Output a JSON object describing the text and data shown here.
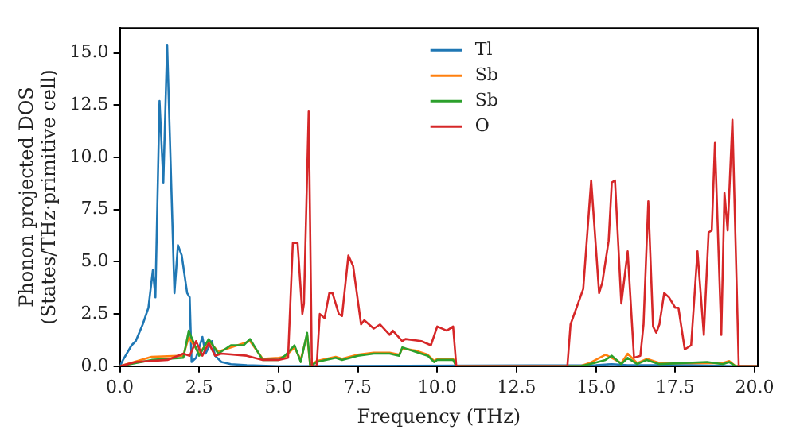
{
  "chart_data": {
    "type": "line",
    "xlabel": "Frequency (THz)",
    "ylabel": "Phonon projected DOS\n(States/THz·primitive cell)",
    "xlim": [
      0,
      20.1
    ],
    "ylim": [
      0,
      16.2
    ],
    "xticks": [
      {
        "value": 0,
        "label": "0.0"
      },
      {
        "value": 2.5,
        "label": "2.5"
      },
      {
        "value": 5,
        "label": "5.0"
      },
      {
        "value": 7.5,
        "label": "7.5"
      },
      {
        "value": 10,
        "label": "10.0"
      },
      {
        "value": 12.5,
        "label": "12.5"
      },
      {
        "value": 15,
        "label": "15.0"
      },
      {
        "value": 17.5,
        "label": "17.5"
      },
      {
        "value": 20,
        "label": "20.0"
      }
    ],
    "yticks": [
      {
        "value": 0,
        "label": "0.0"
      },
      {
        "value": 2.5,
        "label": "2.5"
      },
      {
        "value": 5,
        "label": "5.0"
      },
      {
        "value": 7.5,
        "label": "7.5"
      },
      {
        "value": 10,
        "label": "10.0"
      },
      {
        "value": 12.5,
        "label": "12.5"
      },
      {
        "value": 15,
        "label": "15.0"
      }
    ],
    "legend": "top",
    "grid": false,
    "marker": "none",
    "line_style": "solid",
    "series": [
      {
        "name": "Tl",
        "color": "#1f77b4",
        "x": [
          0,
          0.1,
          0.37,
          0.5,
          0.72,
          0.9,
          1.04,
          1.12,
          1.25,
          1.37,
          1.49,
          1.72,
          1.83,
          1.95,
          2.12,
          2.2,
          2.26,
          2.4,
          2.6,
          2.7,
          2.9,
          3.0,
          3.2,
          3.5,
          4,
          5,
          15,
          15.5,
          16,
          18,
          19.4,
          20.1
        ],
        "values": [
          0,
          0.3,
          1.0,
          1.2,
          2.0,
          2.8,
          4.6,
          3.3,
          12.7,
          8.8,
          15.4,
          3.5,
          5.8,
          5.3,
          3.5,
          3.3,
          0.2,
          0.4,
          1.4,
          0.6,
          1.2,
          0.5,
          0.2,
          0.1,
          0.05,
          0,
          0.05,
          0.1,
          0.05,
          0.05,
          0,
          0
        ]
      },
      {
        "name": "Sb",
        "color": "#ff7f0e",
        "x": [
          0,
          1,
          2,
          2.17,
          2.5,
          2.8,
          3.1,
          3.5,
          3.9,
          4.1,
          4.5,
          5,
          5.2,
          5.5,
          5.7,
          5.9,
          6.0,
          6.2,
          6.8,
          7.0,
          7.5,
          8,
          8.5,
          8.8,
          8.9,
          9.3,
          9.7,
          9.9,
          10,
          10.5,
          10.6,
          14.5,
          14.8,
          15.3,
          15.5,
          15.8,
          16.0,
          16.3,
          16.6,
          17,
          18.5,
          19,
          19.2,
          19.4,
          20.1
        ],
        "values": [
          0,
          0.45,
          0.5,
          1.4,
          0.6,
          1.2,
          0.7,
          0.9,
          1.1,
          1.2,
          0.35,
          0.4,
          0.45,
          0.9,
          0.3,
          1.5,
          0,
          0.25,
          0.45,
          0.35,
          0.55,
          0.65,
          0.65,
          0.55,
          0.85,
          0.75,
          0.55,
          0.25,
          0.35,
          0.35,
          0,
          0,
          0.15,
          0.55,
          0.4,
          0.15,
          0.6,
          0.15,
          0.35,
          0.15,
          0.15,
          0.15,
          0.25,
          0,
          0
        ]
      },
      {
        "name": "Sb",
        "color": "#2ca02c",
        "x": [
          0,
          1,
          2,
          2.17,
          2.5,
          2.8,
          3.1,
          3.5,
          3.9,
          4.1,
          4.5,
          5,
          5.2,
          5.5,
          5.7,
          5.9,
          6.0,
          6.2,
          6.8,
          7.0,
          7.5,
          8,
          8.5,
          8.8,
          8.9,
          9.3,
          9.7,
          9.9,
          10,
          10.5,
          10.6,
          14.5,
          14.8,
          15.3,
          15.5,
          15.8,
          16.0,
          16.3,
          16.6,
          17,
          18.5,
          19,
          19.2,
          19.4,
          20.1
        ],
        "values": [
          0,
          0.3,
          0.4,
          1.7,
          0.5,
          1.3,
          0.6,
          1.0,
          1.0,
          1.3,
          0.3,
          0.3,
          0.5,
          1.0,
          0.2,
          1.6,
          0,
          0.2,
          0.4,
          0.3,
          0.5,
          0.6,
          0.6,
          0.5,
          0.9,
          0.7,
          0.5,
          0.2,
          0.3,
          0.3,
          0,
          0,
          0.1,
          0.3,
          0.5,
          0.1,
          0.4,
          0.1,
          0.3,
          0.1,
          0.2,
          0.1,
          0.2,
          0,
          0
        ]
      },
      {
        "name": "O",
        "color": "#d62728",
        "x": [
          0,
          0.5,
          1.5,
          2,
          2.2,
          2.4,
          2.6,
          2.8,
          3.0,
          3.2,
          4,
          4.5,
          5.0,
          5.3,
          5.45,
          5.6,
          5.75,
          5.8,
          5.95,
          6.05,
          6.2,
          6.3,
          6.45,
          6.6,
          6.7,
          6.9,
          7.0,
          7.2,
          7.35,
          7.6,
          7.7,
          8.0,
          8.2,
          8.5,
          8.6,
          8.9,
          9.0,
          9.5,
          9.8,
          10.0,
          10.3,
          10.5,
          10.6,
          14.1,
          14.2,
          14.6,
          14.85,
          15.1,
          15.2,
          15.4,
          15.5,
          15.6,
          15.8,
          16.0,
          16.2,
          16.4,
          16.5,
          16.65,
          16.8,
          16.9,
          17.0,
          17.15,
          17.3,
          17.5,
          17.6,
          17.8,
          18.0,
          18.2,
          18.4,
          18.55,
          18.65,
          18.75,
          18.95,
          19.05,
          19.15,
          19.3,
          19.5,
          20.1
        ],
        "values": [
          0,
          0.2,
          0.3,
          0.6,
          0.5,
          1.2,
          0.5,
          1.1,
          0.5,
          0.6,
          0.5,
          0.3,
          0.3,
          0.4,
          5.9,
          5.9,
          2.5,
          3.0,
          12.2,
          0,
          0,
          2.5,
          2.3,
          3.5,
          3.5,
          2.5,
          2.4,
          5.3,
          4.8,
          2.0,
          2.2,
          1.8,
          2.0,
          1.5,
          1.7,
          1.2,
          1.3,
          1.2,
          1.0,
          1.9,
          1.7,
          1.9,
          0,
          0,
          2.0,
          3.7,
          8.9,
          3.5,
          4.0,
          6.0,
          8.8,
          8.9,
          3.0,
          5.5,
          0.4,
          0.5,
          2.0,
          7.9,
          1.9,
          1.6,
          2.0,
          3.5,
          3.3,
          2.8,
          2.8,
          0.8,
          1.0,
          5.5,
          1.5,
          6.4,
          6.5,
          10.7,
          1.5,
          8.3,
          6.5,
          11.8,
          0,
          0
        ]
      }
    ]
  }
}
